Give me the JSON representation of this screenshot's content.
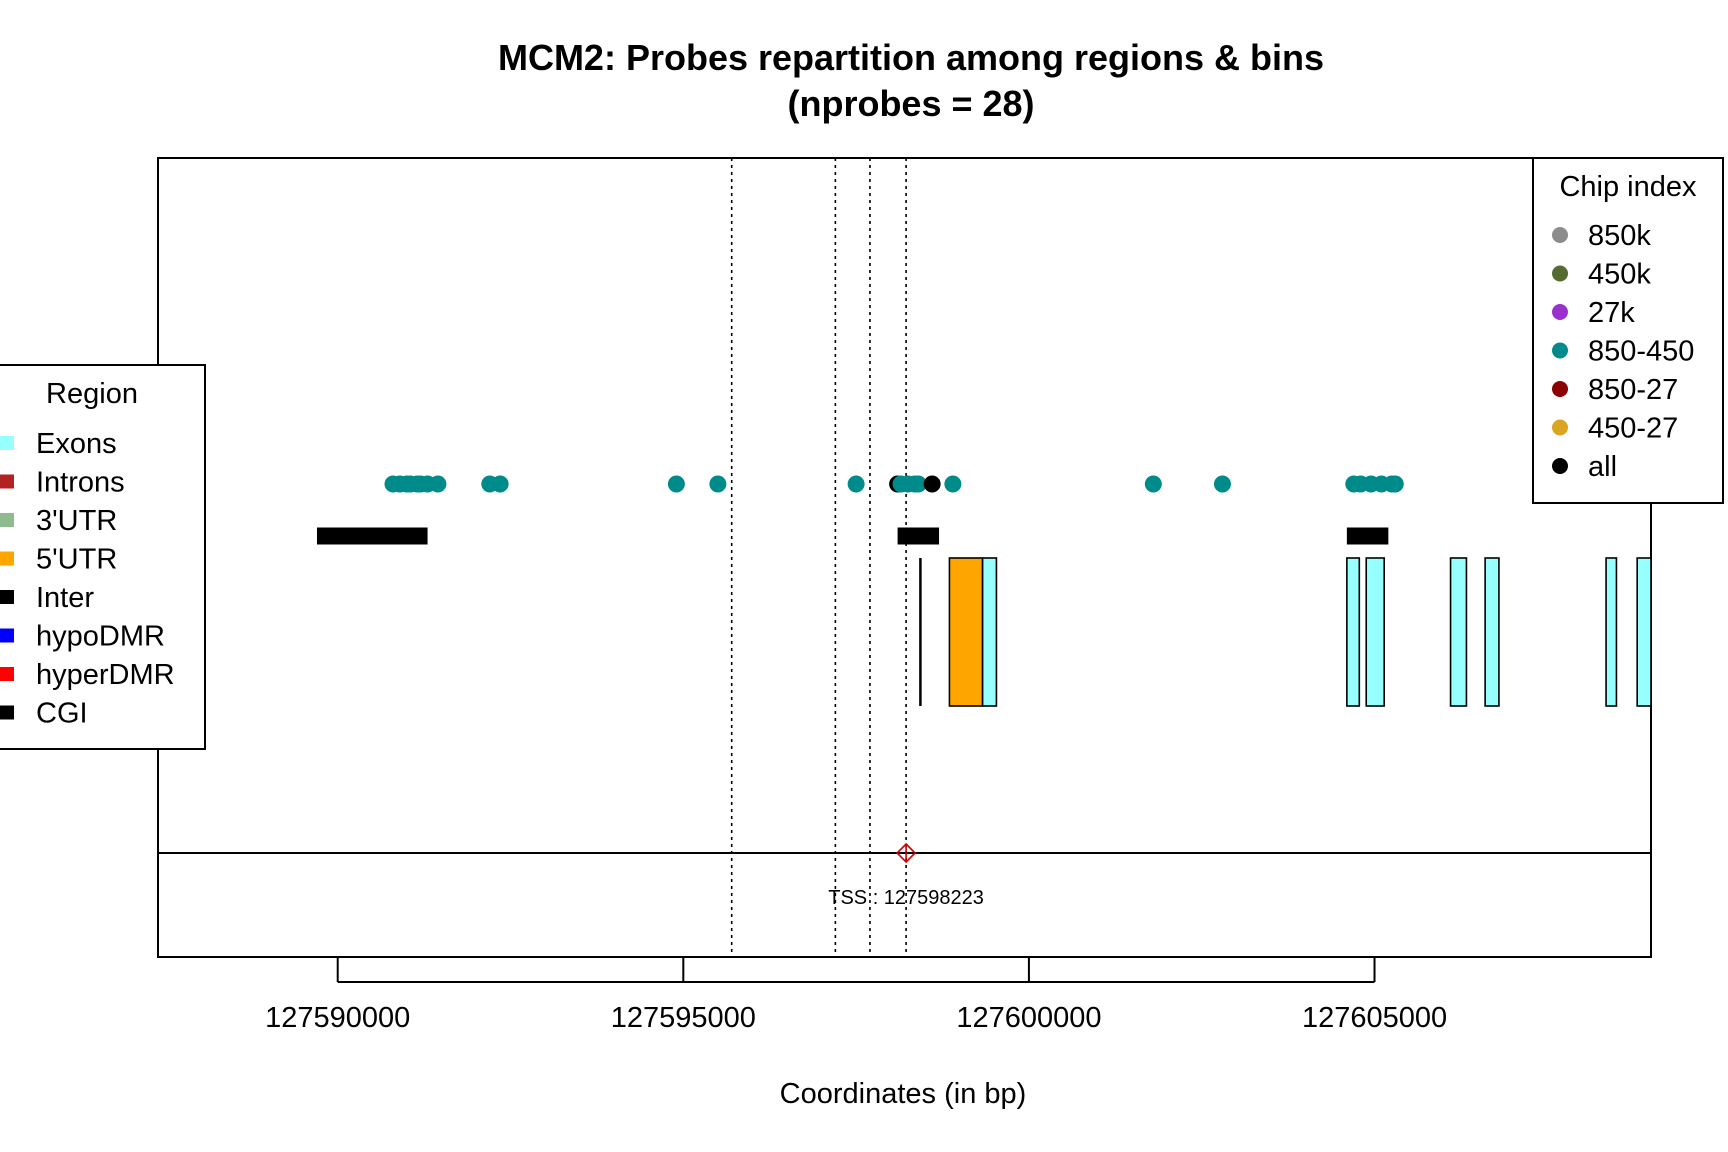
{
  "chart_data": {
    "type": "scatter",
    "title": "MCM2: Probes repartition among regions & bins",
    "subtitle": "(nprobes = 28)",
    "xlabel": "Coordinates (in bp)",
    "ylabel": "",
    "xlim": [
      127587400,
      127609000
    ],
    "x_ticks": [
      127590000,
      127595000,
      127600000,
      127605000
    ],
    "x_tick_labels": [
      "127590000",
      "127595000",
      "127600000",
      "127605000"
    ],
    "bin_boundaries": [
      127595700,
      127597200,
      127597700,
      127598223
    ],
    "tss": {
      "position": 127598223,
      "label": "TSS : 127598223"
    },
    "probes": [
      {
        "x": 127590800,
        "chip": "850-450"
      },
      {
        "x": 127590900,
        "chip": "850-450"
      },
      {
        "x": 127591000,
        "chip": "850-450"
      },
      {
        "x": 127591050,
        "chip": "850-450"
      },
      {
        "x": 127591150,
        "chip": "850-450"
      },
      {
        "x": 127591200,
        "chip": "850-450"
      },
      {
        "x": 127591300,
        "chip": "850-450"
      },
      {
        "x": 127591450,
        "chip": "850-450"
      },
      {
        "x": 127592200,
        "chip": "850-450"
      },
      {
        "x": 127592350,
        "chip": "850-450"
      },
      {
        "x": 127594900,
        "chip": "850-450"
      },
      {
        "x": 127595500,
        "chip": "850-450"
      },
      {
        "x": 127597500,
        "chip": "850-450"
      },
      {
        "x": 127598100,
        "chip": "all"
      },
      {
        "x": 127598150,
        "chip": "850-450"
      },
      {
        "x": 127598250,
        "chip": "850-450"
      },
      {
        "x": 127598350,
        "chip": "850-450"
      },
      {
        "x": 127598400,
        "chip": "850-450"
      },
      {
        "x": 127598600,
        "chip": "all"
      },
      {
        "x": 127598900,
        "chip": "850-450"
      },
      {
        "x": 127601800,
        "chip": "850-450"
      },
      {
        "x": 127602800,
        "chip": "850-450"
      },
      {
        "x": 127604700,
        "chip": "850-450"
      },
      {
        "x": 127604800,
        "chip": "850-450"
      },
      {
        "x": 127604950,
        "chip": "850-450"
      },
      {
        "x": 127605100,
        "chip": "850-450"
      },
      {
        "x": 127605250,
        "chip": "850-450"
      },
      {
        "x": 127605300,
        "chip": "850-450"
      }
    ],
    "cgi": [
      {
        "start": 127589700,
        "end": 127591300
      },
      {
        "start": 127598100,
        "end": 127598700
      },
      {
        "start": 127604600,
        "end": 127605200
      }
    ],
    "features": [
      {
        "type": "Inter",
        "start": 127598420,
        "end": 127598440
      },
      {
        "type": "5'UTR",
        "start": 127598850,
        "end": 127599330
      },
      {
        "type": "Exons",
        "start": 127599330,
        "end": 127599530
      },
      {
        "type": "Exons",
        "start": 127604600,
        "end": 127604780
      },
      {
        "type": "Exons",
        "start": 127604880,
        "end": 127605140
      },
      {
        "type": "Exons",
        "start": 127606100,
        "end": 127606330
      },
      {
        "type": "Exons",
        "start": 127606600,
        "end": 127606800
      },
      {
        "type": "Exons",
        "start": 127608350,
        "end": 127608500
      },
      {
        "type": "Exons",
        "start": 127608800,
        "end": 127609000
      }
    ],
    "region_legend": {
      "title": "Region",
      "items": [
        {
          "label": "Exons",
          "color": "#98FFFF"
        },
        {
          "label": "Introns",
          "color": "#B22222"
        },
        {
          "label": "3'UTR",
          "color": "#8FBC8F"
        },
        {
          "label": "5'UTR",
          "color": "#FFA500"
        },
        {
          "label": "Inter",
          "color": "#000000"
        },
        {
          "label": "hypoDMR",
          "color": "#0000FF"
        },
        {
          "label": "hyperDMR",
          "color": "#FF0000"
        },
        {
          "label": "CGI",
          "color": "#000000"
        }
      ]
    },
    "chip_legend": {
      "title": "Chip index",
      "items": [
        {
          "label": "850k",
          "color": "#8C8C8C"
        },
        {
          "label": "450k",
          "color": "#556B2F"
        },
        {
          "label": "27k",
          "color": "#9932CC"
        },
        {
          "label": "850-450",
          "color": "#008B8B"
        },
        {
          "label": "850-27",
          "color": "#8B0000"
        },
        {
          "label": "450-27",
          "color": "#DAA520"
        },
        {
          "label": "all",
          "color": "#000000"
        }
      ]
    },
    "colors": {
      "tss_marker": "#CC0000"
    }
  }
}
